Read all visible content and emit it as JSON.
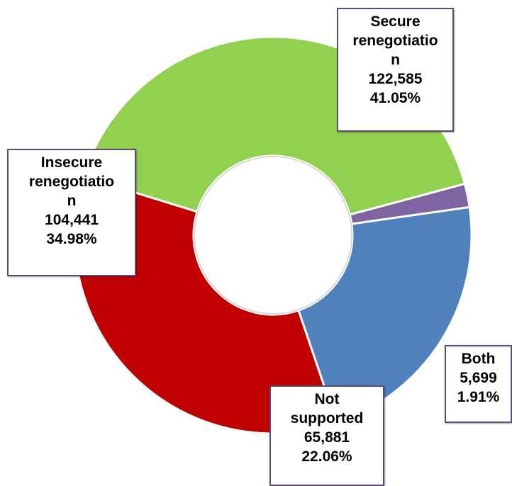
{
  "chart_data": {
    "type": "pie",
    "variant": "donut",
    "title": "",
    "slices": [
      {
        "name": "Secure renegotiation",
        "value": 122585,
        "percent": 41.05,
        "color": "#92d050",
        "label_lines": [
          "Secure",
          "renegotiatio",
          "n",
          "122,585",
          "41.05%"
        ]
      },
      {
        "name": "Both",
        "value": 5699,
        "percent": 1.91,
        "color": "#8064a2",
        "label_lines": [
          "Both",
          "5,699",
          "1.91%"
        ]
      },
      {
        "name": "Not supported",
        "value": 65881,
        "percent": 22.06,
        "color": "#4f81bd",
        "label_lines": [
          "Not",
          "supported",
          "65,881",
          "22.06%"
        ]
      },
      {
        "name": "Insecure renegotiation",
        "value": 104441,
        "percent": 34.98,
        "color": "#c00000",
        "label_lines": [
          "Insecure",
          "renegotiatio",
          "n",
          "104,441",
          "34.98%"
        ]
      }
    ],
    "label_border_color": "#5f497a",
    "legend": "none"
  }
}
